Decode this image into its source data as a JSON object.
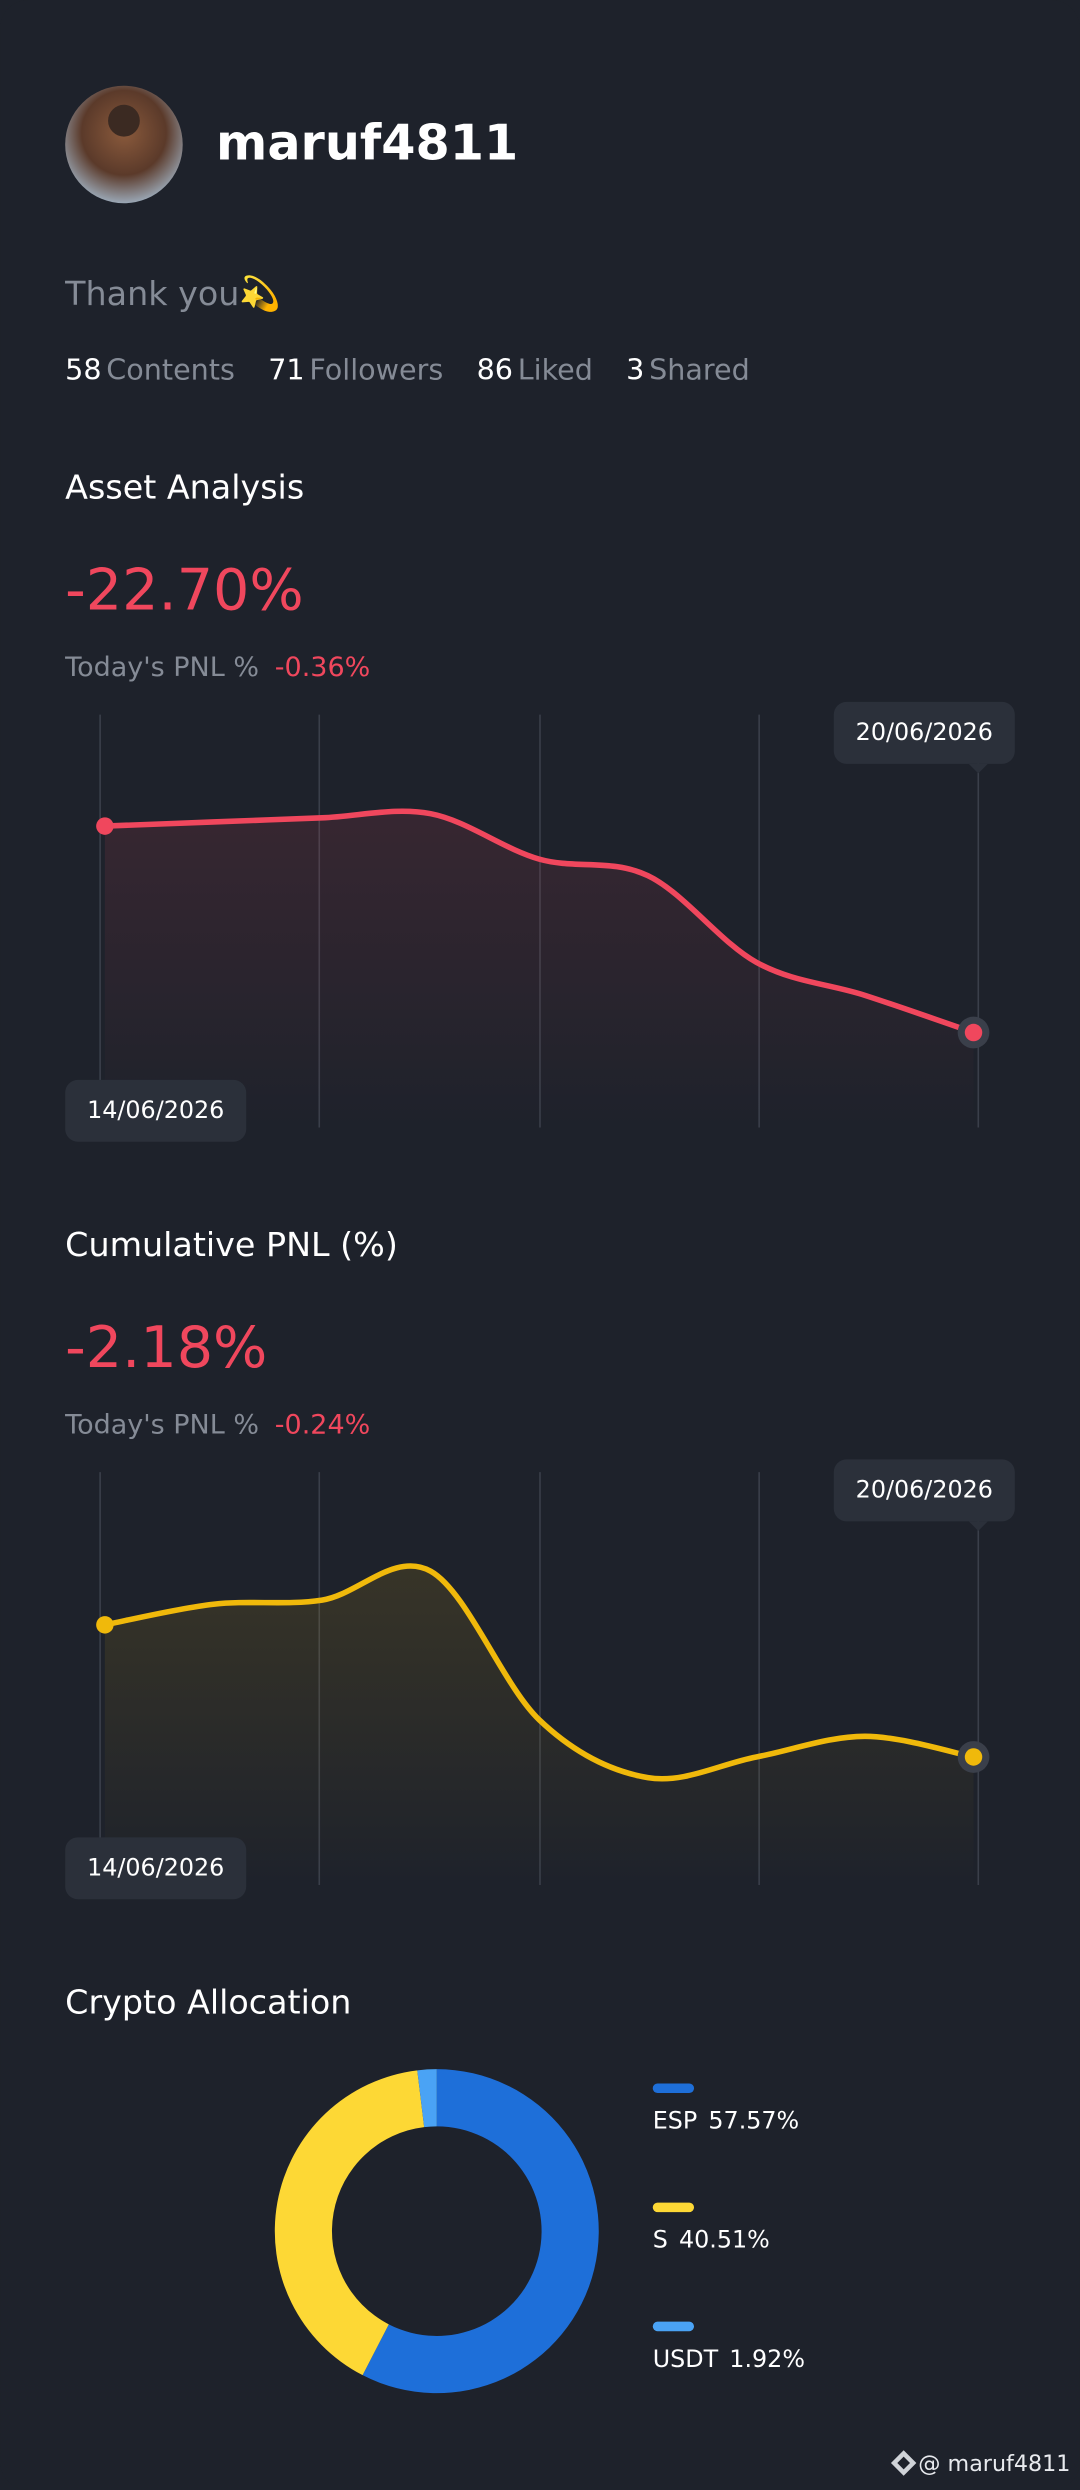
{
  "profile": {
    "username": "maruf4811",
    "bio": "Thank you💫",
    "stats": [
      {
        "value": "58",
        "label": "Contents"
      },
      {
        "value": "71",
        "label": "Followers"
      },
      {
        "value": "86",
        "label": "Liked"
      },
      {
        "value": "3",
        "label": "Shared"
      }
    ]
  },
  "asset_analysis": {
    "title": "Asset Analysis",
    "value": "-22.70%",
    "pnl_label": "Today's PNL %",
    "pnl_value": "-0.36%",
    "chart": {
      "type": "line",
      "x": [
        "14/06/2026",
        null,
        null,
        null,
        null,
        null,
        null,
        null,
        "20/06/2026"
      ],
      "values": [
        7.3,
        7.4,
        7.5,
        7.6,
        6.5,
        6.1,
        4.0,
        3.2,
        2.3
      ],
      "ylim": [
        0,
        10
      ],
      "color": "#f0475d"
    }
  },
  "cumulative_pnl": {
    "title": "Cumulative PNL (%)",
    "value": "-2.18%",
    "pnl_label": "Today's PNL %",
    "pnl_value": "-0.24%",
    "chart": {
      "type": "line",
      "x": [
        "14/06/2026",
        null,
        null,
        null,
        null,
        null,
        null,
        null,
        "20/06/2026"
      ],
      "values": [
        6.3,
        6.8,
        6.9,
        7.6,
        4.0,
        2.6,
        3.1,
        3.6,
        3.1
      ],
      "ylim": [
        0,
        10
      ],
      "color": "#f0b90b"
    }
  },
  "crypto_allocation": {
    "title": "Crypto Allocation",
    "chart": {
      "type": "donut",
      "categories": [
        "ESP",
        "S",
        "USDT"
      ],
      "values": [
        57.57,
        40.51,
        1.92
      ],
      "value_labels": [
        "57.57%",
        "40.51%",
        "1.92%"
      ],
      "colors": [
        "#1e6fd9",
        "#fdd835",
        "#4aa3f5"
      ]
    }
  },
  "watermark": "@ maruf4811"
}
